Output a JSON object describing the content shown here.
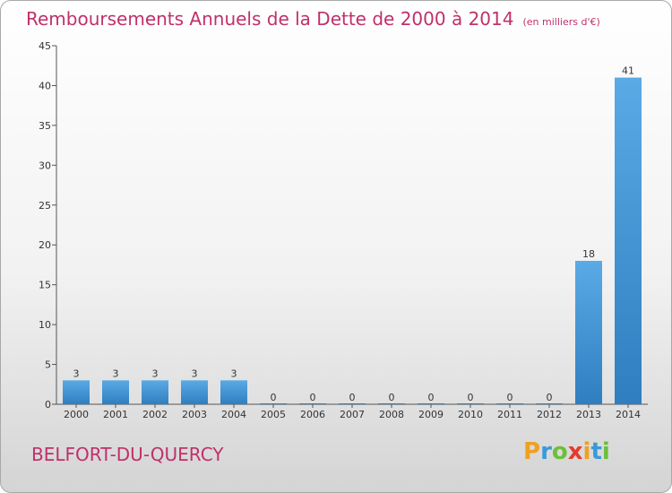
{
  "title": "Remboursements Annuels de la Dette de 2000 à 2014",
  "unit": "(en milliers d'€)",
  "commune": "BELFORT-DU-QUERCY",
  "logo": {
    "letters": [
      "P",
      "r",
      "o",
      "x",
      "i",
      "t",
      "i"
    ],
    "colors": [
      "#f0a020",
      "#3a9ad9",
      "#6cbf3c",
      "#e63a2e",
      "#f0a020",
      "#3a9ad9",
      "#6cbf3c"
    ]
  },
  "colors": {
    "title": "#c0306a",
    "bar_light": "#5aaae6",
    "bar_dark": "#2f7ebf"
  },
  "chart_data": {
    "type": "bar",
    "categories": [
      "2000",
      "2001",
      "2002",
      "2003",
      "2004",
      "2005",
      "2006",
      "2007",
      "2008",
      "2009",
      "2010",
      "2011",
      "2012",
      "2013",
      "2014"
    ],
    "values": [
      3,
      3,
      3,
      3,
      3,
      0,
      0,
      0,
      0,
      0,
      0,
      0,
      0,
      18,
      41
    ],
    "title": "Remboursements Annuels de la Dette de 2000 à 2014",
    "xlabel": "",
    "ylabel": "",
    "ylim": [
      0,
      45
    ],
    "yticks": [
      0,
      5,
      10,
      15,
      20,
      25,
      30,
      35,
      40,
      45
    ],
    "grid": false
  }
}
